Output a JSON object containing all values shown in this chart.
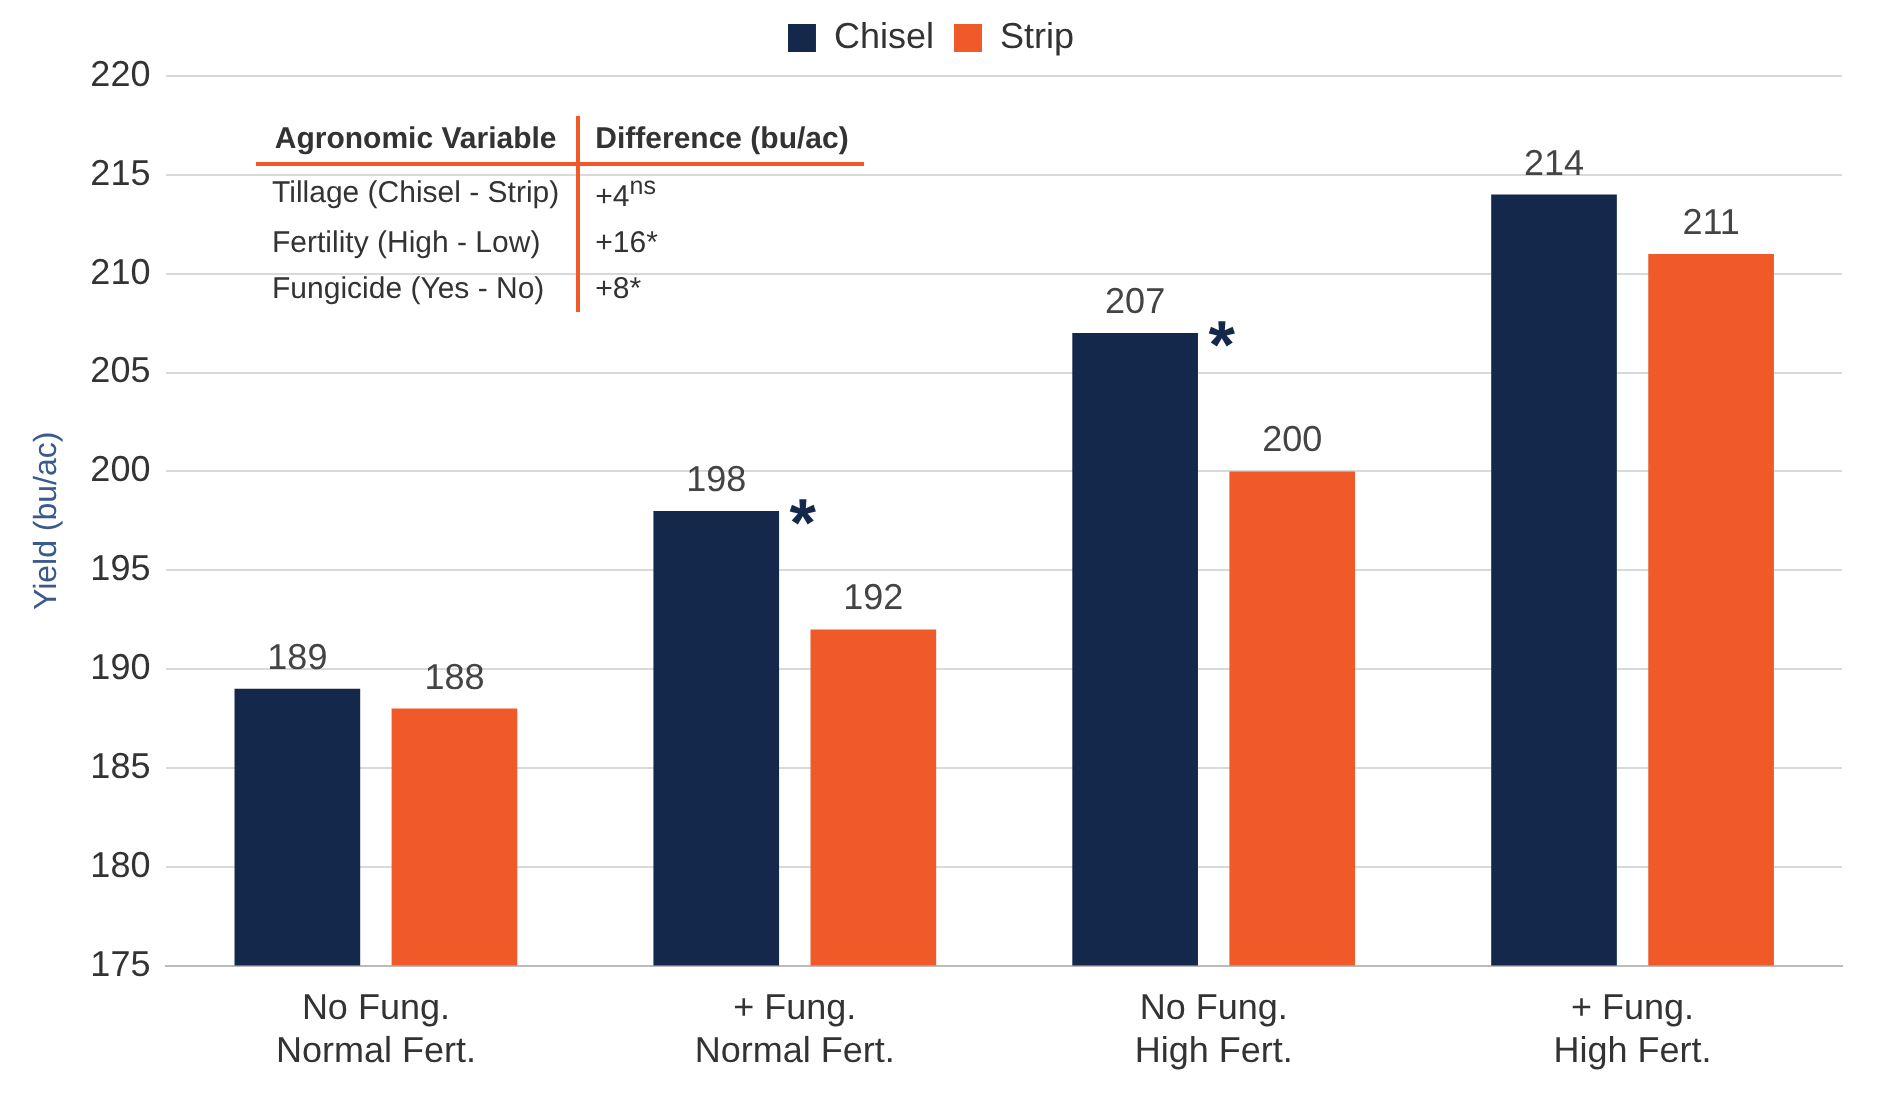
{
  "chart_data": {
    "type": "bar",
    "ylabel": "Yield (bu/ac)",
    "categories": [
      "No Fung.\nNormal Fert.",
      "+ Fung.\nNormal Fert.",
      "No Fung.\nHigh Fert.",
      "+ Fung.\nHigh Fert."
    ],
    "series": [
      {
        "name": "Chisel",
        "color": "#14284b",
        "values": [
          189,
          198,
          207,
          214
        ]
      },
      {
        "name": "Strip",
        "color": "#f05a28",
        "values": [
          188,
          192,
          200,
          211
        ]
      }
    ],
    "ylim": [
      175,
      220
    ],
    "yticks": [
      175,
      180,
      185,
      190,
      195,
      200,
      205,
      210,
      215,
      220
    ],
    "grid": "y",
    "legend": "top",
    "data_labels": true,
    "annotations": [
      "Agronomic Variable",
      "Difference (bu/ac)",
      "Tillage (Chisel - Strip)",
      "+4$^{ns}$",
      "Fertility (High - Low)",
      "+16*",
      "Fungicide (Yes - No)",
      "+8*",
      "*",
      "*"
    ]
  }
}
